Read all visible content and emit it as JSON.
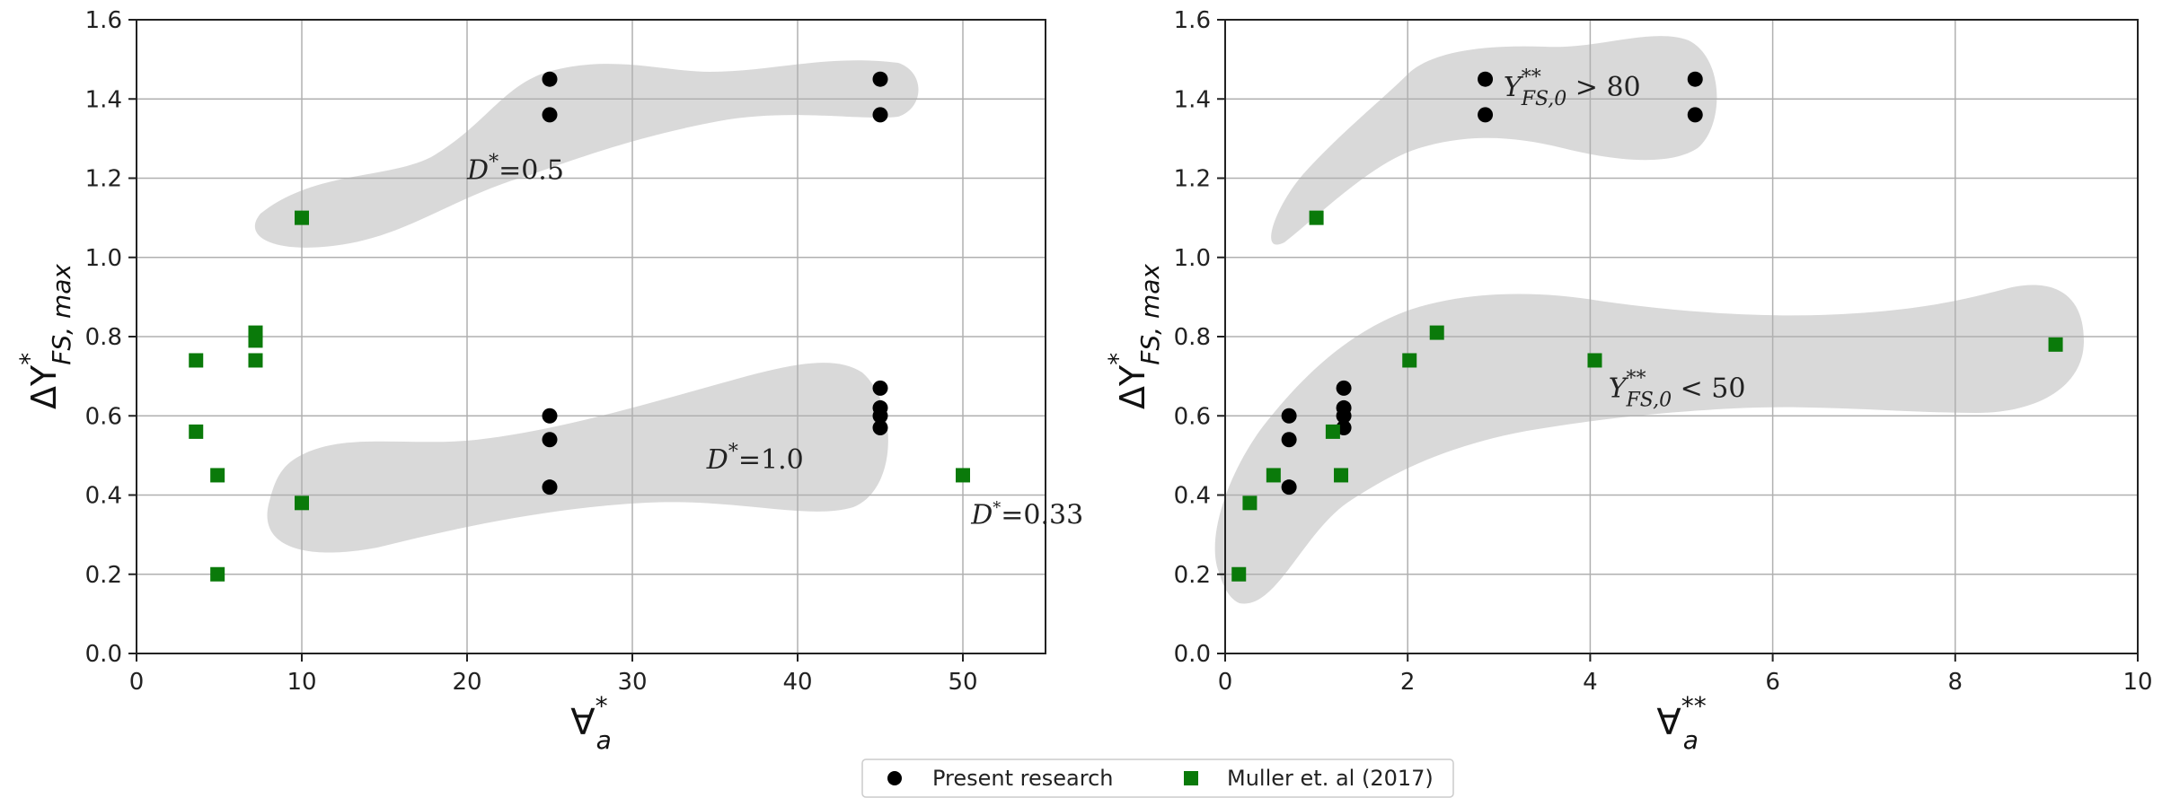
{
  "chart_data": [
    {
      "type": "scatter",
      "xlabel_main": "∀",
      "xlabel_sup": "*",
      "xlabel_sub": "a",
      "ylabel_main": "ΔY",
      "ylabel_sup": "*",
      "ylabel_sub": "FS, max",
      "xlim": [
        0,
        55
      ],
      "ylim": [
        0,
        1.6
      ],
      "xticks": [
        0,
        10,
        20,
        30,
        40,
        50
      ],
      "yticks": [
        0.0,
        0.2,
        0.4,
        0.6,
        0.8,
        1.0,
        1.2,
        1.4,
        1.6
      ],
      "ytick_labels": [
        "0.0",
        "0.2",
        "0.4",
        "0.6",
        "0.8",
        "1.0",
        "1.2",
        "1.4",
        "1.6"
      ],
      "grid": true,
      "series": [
        {
          "name": "Present research",
          "color": "#000000",
          "marker": "circle",
          "points": [
            [
              25,
              1.45
            ],
            [
              25,
              1.36
            ],
            [
              45,
              1.45
            ],
            [
              45,
              1.36
            ],
            [
              25,
              0.6
            ],
            [
              25,
              0.54
            ],
            [
              25,
              0.42
            ],
            [
              45,
              0.67
            ],
            [
              45,
              0.62
            ],
            [
              45,
              0.6
            ],
            [
              45,
              0.57
            ]
          ]
        },
        {
          "name": "Muller et. al (2017)",
          "color": "#0a7a0a",
          "marker": "square",
          "points": [
            [
              10,
              1.1
            ],
            [
              3.6,
              0.74
            ],
            [
              3.6,
              0.56
            ],
            [
              4.9,
              0.45
            ],
            [
              4.9,
              0.2
            ],
            [
              7.2,
              0.81
            ],
            [
              7.2,
              0.79
            ],
            [
              7.2,
              0.74
            ],
            [
              10,
              0.38
            ],
            [
              50,
              0.45
            ]
          ]
        }
      ],
      "annotations": [
        {
          "text": "D*=0.5",
          "x": 20,
          "y": 1.22
        },
        {
          "text": "D*=1.0",
          "x": 34.5,
          "y": 0.49
        },
        {
          "text": "D*=0.33",
          "x": 50.5,
          "y": 0.35
        }
      ]
    },
    {
      "type": "scatter",
      "xlabel_main": "∀",
      "xlabel_sup": "**",
      "xlabel_sub": "a",
      "ylabel_main": "ΔY",
      "ylabel_sup": "*",
      "ylabel_sub": "FS, max",
      "xlim": [
        0,
        10
      ],
      "ylim": [
        0,
        1.6
      ],
      "xticks": [
        0,
        2,
        4,
        6,
        8,
        10
      ],
      "yticks": [
        0.0,
        0.2,
        0.4,
        0.6,
        0.8,
        1.0,
        1.2,
        1.4,
        1.6
      ],
      "ytick_labels": [
        "0.0",
        "0.2",
        "0.4",
        "0.6",
        "0.8",
        "1.0",
        "1.2",
        "1.4",
        "1.6"
      ],
      "grid": true,
      "series": [
        {
          "name": "Present research",
          "color": "#000000",
          "marker": "circle",
          "points": [
            [
              2.85,
              1.45
            ],
            [
              2.85,
              1.36
            ],
            [
              5.15,
              1.45
            ],
            [
              5.15,
              1.36
            ],
            [
              0.7,
              0.6
            ],
            [
              0.7,
              0.54
            ],
            [
              0.7,
              0.42
            ],
            [
              1.3,
              0.67
            ],
            [
              1.3,
              0.62
            ],
            [
              1.3,
              0.6
            ],
            [
              1.3,
              0.57
            ]
          ]
        },
        {
          "name": "Muller et. al (2017)",
          "color": "#0a7a0a",
          "marker": "square",
          "points": [
            [
              1.0,
              1.1
            ],
            [
              0.15,
              0.2
            ],
            [
              0.27,
              0.38
            ],
            [
              0.53,
              0.45
            ],
            [
              1.18,
              0.56
            ],
            [
              1.27,
              0.45
            ],
            [
              2.02,
              0.74
            ],
            [
              2.32,
              0.81
            ],
            [
              4.05,
              0.74
            ],
            [
              9.1,
              0.78
            ]
          ]
        }
      ],
      "annotations": [
        {
          "text": "Y**FS,0 > 80",
          "main": "Y",
          "sup": "**",
          "sub": "FS,0",
          "rest": " > 80",
          "x": 3.05,
          "y": 1.43
        },
        {
          "text": "Y**FS,0 < 50",
          "main": "Y",
          "sup": "**",
          "sub": "FS,0",
          "rest": " < 50",
          "x": 4.2,
          "y": 0.67
        }
      ]
    }
  ],
  "legend": {
    "entries": [
      {
        "label": "Present research",
        "marker": "circle",
        "color": "#000000"
      },
      {
        "label": "Muller et. al (2017)",
        "marker": "square",
        "color": "#0a7a0a"
      }
    ],
    "placement": "bottom-center"
  },
  "colors": {
    "region_fill": "#d9d9d9",
    "grid": "#b0b0b0",
    "axis": "#222222"
  }
}
